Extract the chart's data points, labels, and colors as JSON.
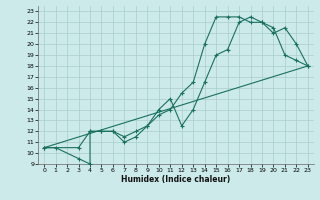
{
  "xlabel": "Humidex (Indice chaleur)",
  "bg_color": "#cceaea",
  "grid_color": "#aacccc",
  "line_color": "#1a7060",
  "xlim": [
    -0.5,
    23.5
  ],
  "ylim": [
    9,
    23.5
  ],
  "xticks": [
    0,
    1,
    2,
    3,
    4,
    5,
    6,
    7,
    8,
    9,
    10,
    11,
    12,
    13,
    14,
    15,
    16,
    17,
    18,
    19,
    20,
    21,
    22,
    23
  ],
  "yticks": [
    9,
    10,
    11,
    12,
    13,
    14,
    15,
    16,
    17,
    18,
    19,
    20,
    21,
    22,
    23
  ],
  "series1_x": [
    0,
    1,
    3,
    4,
    4,
    5,
    6,
    7,
    8,
    9,
    10,
    11,
    12,
    13,
    14,
    15,
    16,
    17,
    18,
    19,
    20,
    21,
    22,
    23
  ],
  "series1_y": [
    10.5,
    10.5,
    9.5,
    9,
    12,
    12,
    12,
    11,
    11.5,
    12.5,
    14,
    15,
    12.5,
    14,
    16.5,
    19,
    19.5,
    22,
    22.5,
    22,
    21.5,
    19,
    18.5,
    18
  ],
  "series2_x": [
    0,
    3,
    4,
    5,
    6,
    7,
    8,
    9,
    10,
    11,
    12,
    13,
    14,
    15,
    16,
    17,
    18,
    19,
    20,
    21,
    22,
    23
  ],
  "series2_y": [
    10.5,
    10.5,
    12,
    12,
    12,
    11.5,
    12,
    12.5,
    13.5,
    14,
    15.5,
    16.5,
    20,
    22.5,
    22.5,
    22.5,
    22,
    22,
    21,
    21.5,
    20,
    18
  ],
  "series3_x": [
    0,
    23
  ],
  "series3_y": [
    10.5,
    18
  ]
}
